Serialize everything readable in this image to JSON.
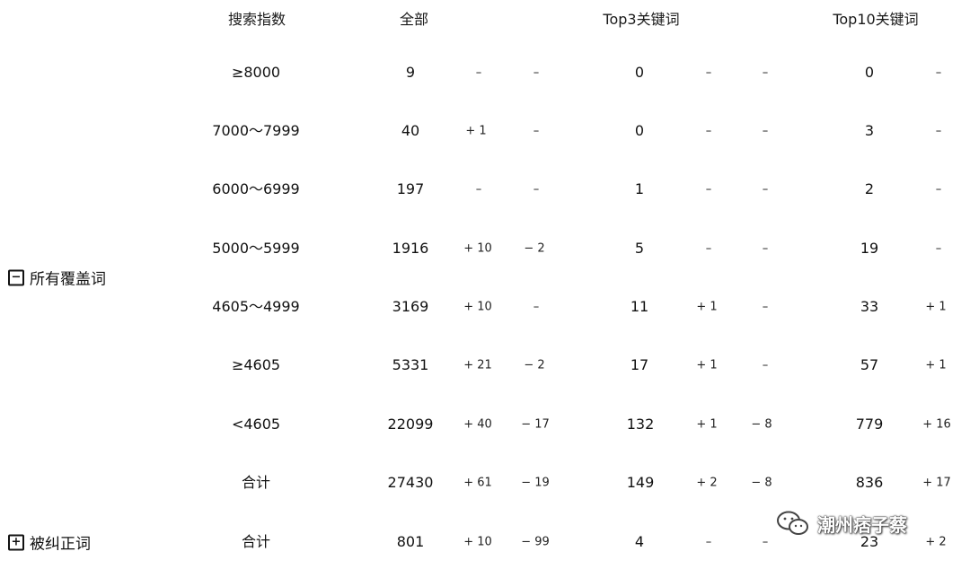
{
  "headers": {
    "index": "搜索指数",
    "all": "全部",
    "top3": "Top3关键词",
    "top10": "Top10关键词"
  },
  "groups": {
    "covered": {
      "toggle": "−",
      "label": "所有覆盖词"
    },
    "corrected": {
      "toggle": "+",
      "label": "被纠正词"
    }
  },
  "rows": [
    {
      "range": "≥8000",
      "all": "9",
      "all_up": "–",
      "all_down": "–",
      "top3": "0",
      "top3_up": "–",
      "top3_down": "–",
      "top10": "0",
      "top10_up": "–"
    },
    {
      "range": "7000～7999",
      "all": "40",
      "all_up": "+ 1",
      "all_down": "–",
      "top3": "0",
      "top3_up": "–",
      "top3_down": "–",
      "top10": "3",
      "top10_up": "–"
    },
    {
      "range": "6000～6999",
      "all": "197",
      "all_up": "–",
      "all_down": "–",
      "top3": "1",
      "top3_up": "–",
      "top3_down": "–",
      "top10": "2",
      "top10_up": "–"
    },
    {
      "range": "5000～5999",
      "all": "1916",
      "all_up": "+ 10",
      "all_down": "− 2",
      "top3": "5",
      "top3_up": "–",
      "top3_down": "–",
      "top10": "19",
      "top10_up": "–"
    },
    {
      "range": "4605～4999",
      "all": "3169",
      "all_up": "+ 10",
      "all_down": "–",
      "top3": "11",
      "top3_up": "+ 1",
      "top3_down": "–",
      "top10": "33",
      "top10_up": "+ 1"
    },
    {
      "range": "≥4605",
      "all": "5331",
      "all_up": "+ 21",
      "all_down": "− 2",
      "top3": "17",
      "top3_up": "+ 1",
      "top3_down": "–",
      "top10": "57",
      "top10_up": "+ 1"
    },
    {
      "range": "<4605",
      "all": "22099",
      "all_up": "+ 40",
      "all_down": "− 17",
      "top3": "132",
      "top3_up": "+ 1",
      "top3_down": "− 8",
      "top10": "779",
      "top10_up": "+ 16"
    },
    {
      "range": "合计",
      "all": "27430",
      "all_up": "+ 61",
      "all_down": "− 19",
      "top3": "149",
      "top3_up": "+ 2",
      "top3_down": "− 8",
      "top10": "836",
      "top10_up": "+ 17"
    },
    {
      "range": "合计",
      "all": "801",
      "all_up": "+ 10",
      "all_down": "− 99",
      "top3": "4",
      "top3_up": "–",
      "top3_down": "–",
      "top10": "23",
      "top10_up": "+ 2"
    }
  ],
  "watermark": {
    "text": "潮州痞子蔡",
    "icon": "wechat-icon"
  }
}
